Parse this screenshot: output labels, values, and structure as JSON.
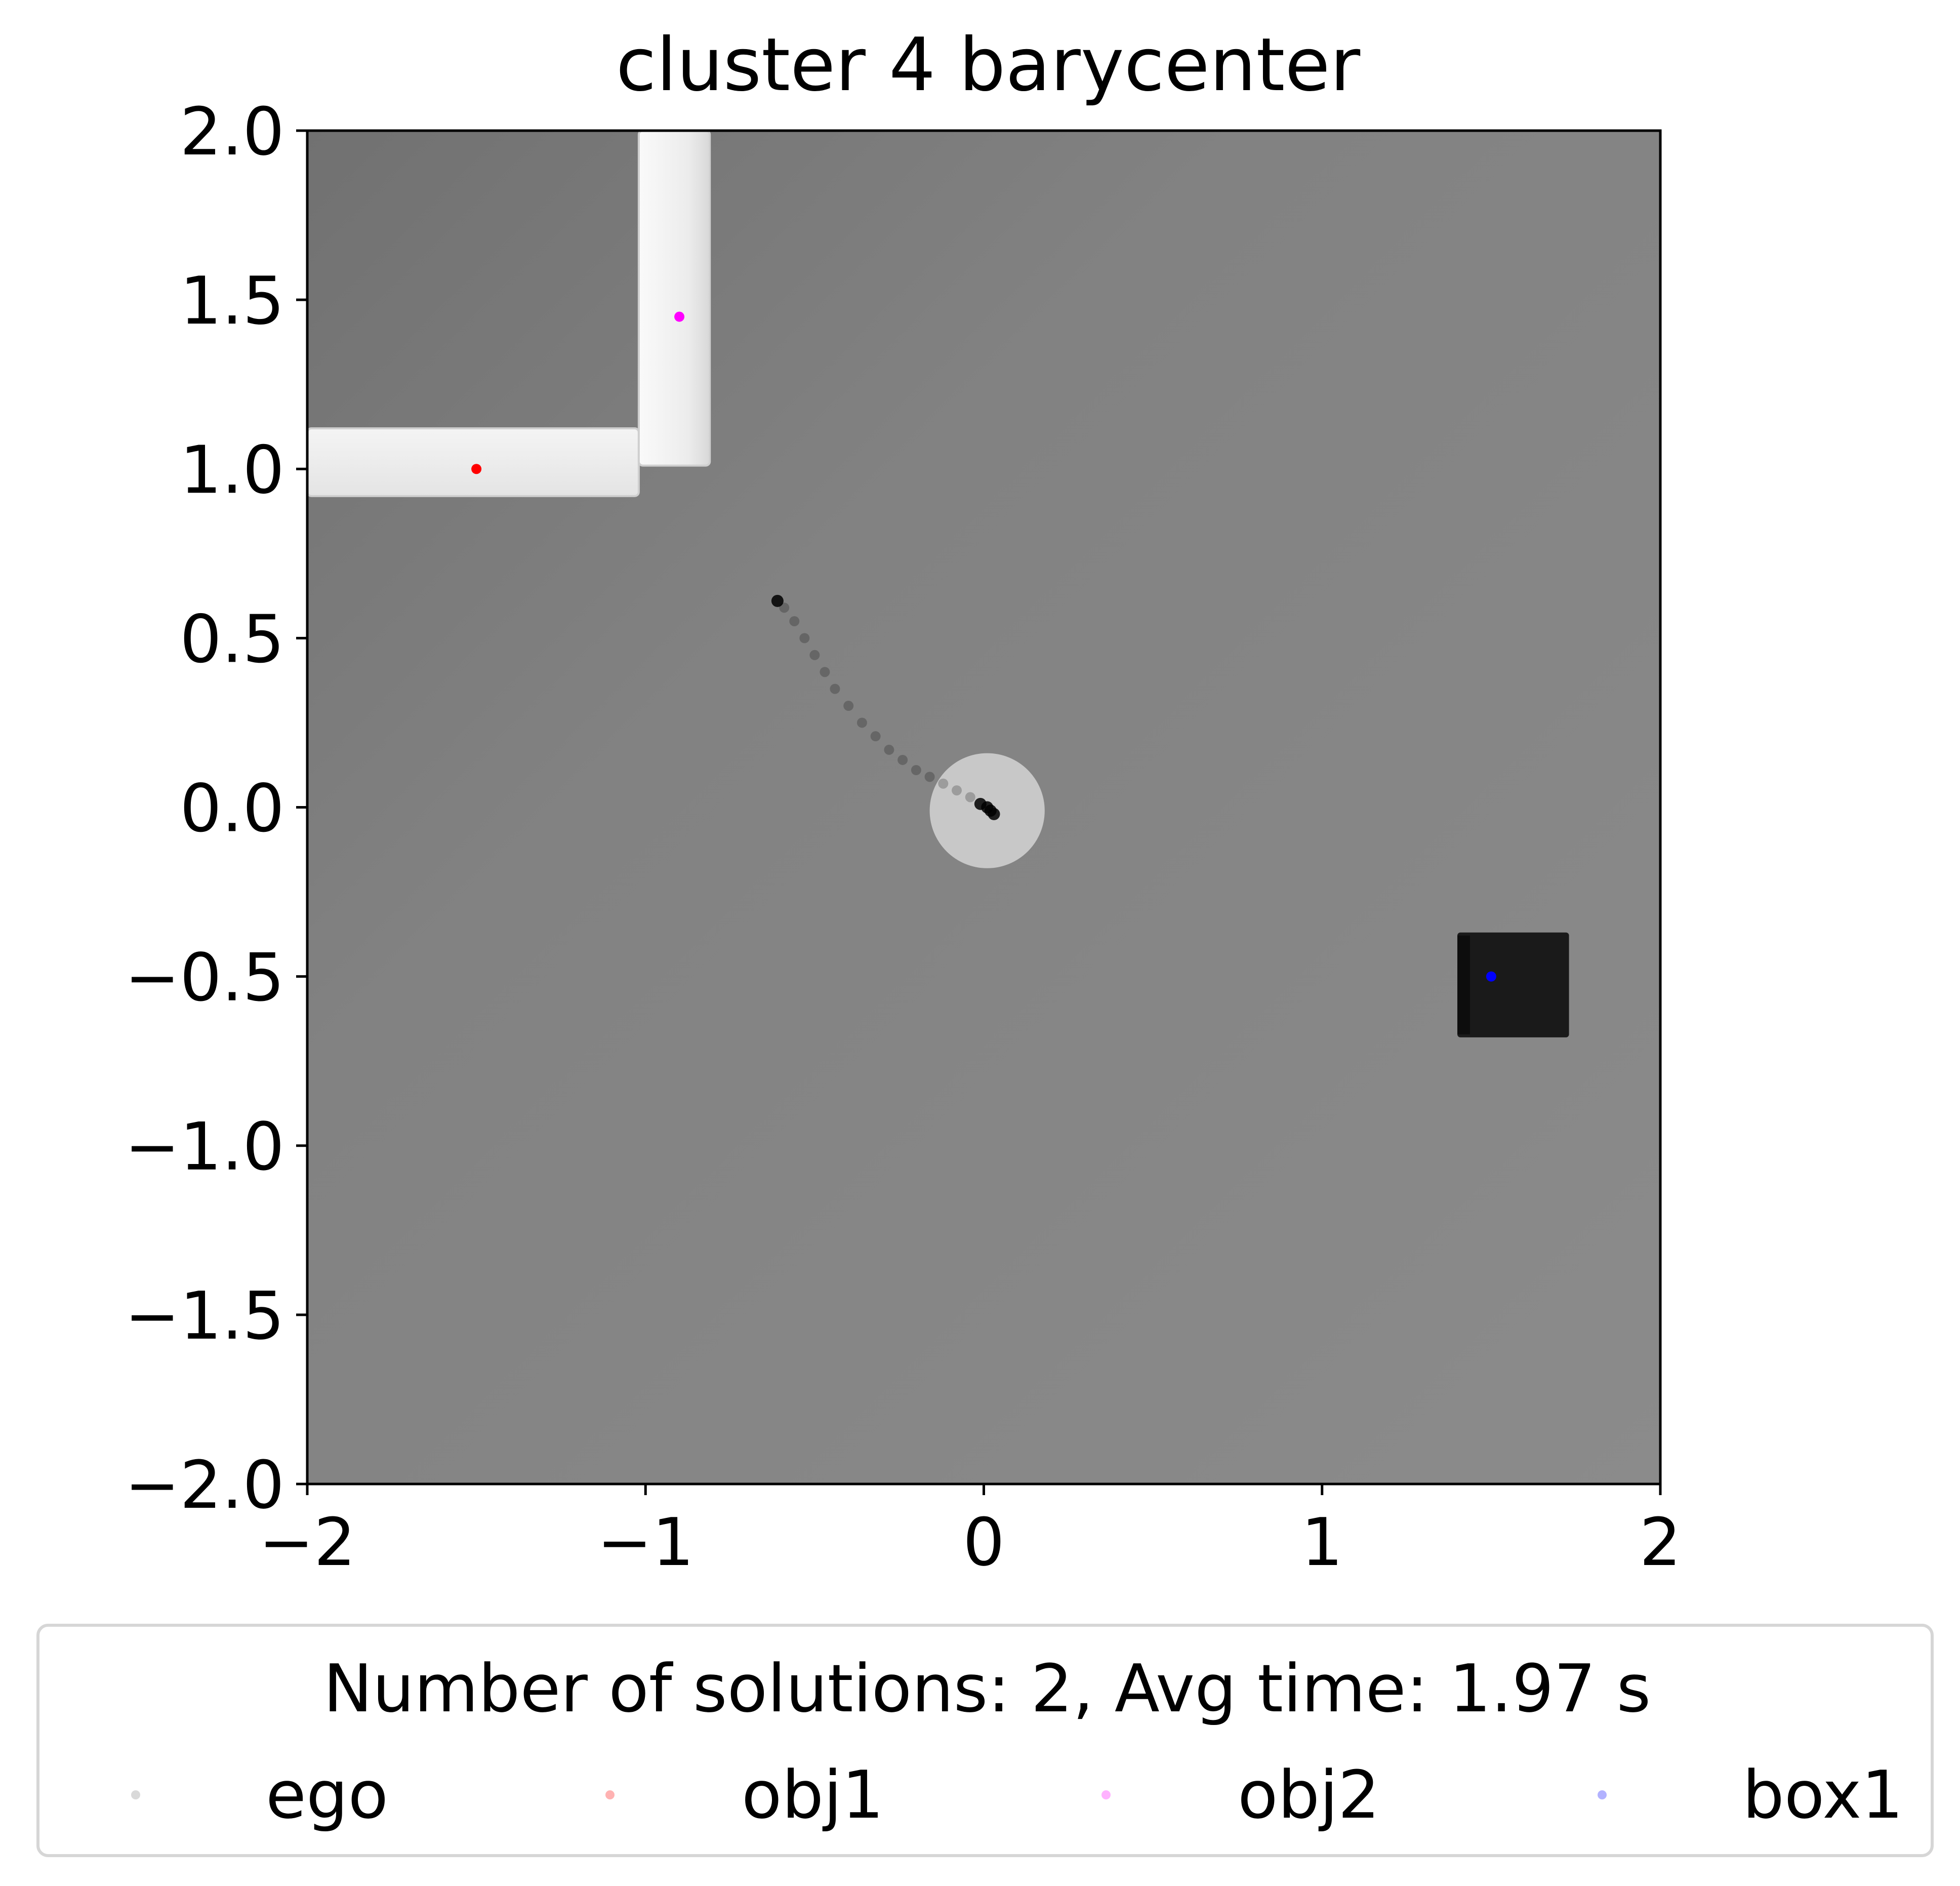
{
  "chart_data": {
    "type": "scatter",
    "title": "cluster 4 barycenter",
    "xlabel": "",
    "ylabel": "",
    "xlim": [
      -2,
      2
    ],
    "ylim": [
      -2,
      2
    ],
    "x_ticks": [
      -2,
      -1,
      0,
      1,
      2
    ],
    "x_tick_labels": [
      "−2",
      "−1",
      "0",
      "1",
      "2"
    ],
    "y_ticks": [
      2.0,
      1.5,
      1.0,
      0.5,
      0.0,
      -0.5,
      -1.0,
      -1.5,
      -2.0
    ],
    "y_tick_labels": [
      "2.0",
      "1.5",
      "1.0",
      "0.5",
      "0.0",
      "−0.5",
      "−1.0",
      "−1.5",
      "−2.0"
    ],
    "grid": false,
    "legend": {
      "placement": "bottom-outside",
      "title": "Number of solutions: 2, Avg time: 1.97 s",
      "entries": [
        {
          "label": "ego",
          "color": "#808080"
        },
        {
          "label": "obj1",
          "color": "#ff0000"
        },
        {
          "label": "obj2",
          "color": "#ff00ff"
        },
        {
          "label": "box1",
          "color": "#0000ff"
        }
      ]
    },
    "series": [
      {
        "name": "ego",
        "color": "#000000",
        "x": [
          -0.61,
          -0.59,
          -0.56,
          -0.53,
          -0.5,
          -0.47,
          -0.44,
          -0.4,
          -0.36,
          -0.32,
          -0.28,
          -0.24,
          -0.2,
          -0.16,
          -0.12,
          -0.08,
          -0.04,
          -0.01,
          0.01,
          0.02,
          0.03
        ],
        "y": [
          0.61,
          0.59,
          0.55,
          0.5,
          0.45,
          0.4,
          0.35,
          0.3,
          0.25,
          0.21,
          0.17,
          0.14,
          0.11,
          0.09,
          0.07,
          0.05,
          0.03,
          0.01,
          0.0,
          -0.01,
          -0.02
        ]
      },
      {
        "name": "obj1",
        "color": "#ff0000",
        "x": [
          -1.5
        ],
        "y": [
          1.0
        ]
      },
      {
        "name": "obj2",
        "color": "#ff00ff",
        "x": [
          -0.9
        ],
        "y": [
          1.45
        ]
      },
      {
        "name": "box1",
        "color": "#0000ff",
        "x": [
          1.5
        ],
        "y": [
          -0.5
        ]
      }
    ],
    "scene": {
      "robot_disk": {
        "x": 0.01,
        "y": -0.01,
        "radius": 0.17,
        "color": "#c8c8c8"
      },
      "walls": [
        {
          "name": "wall-horizontal",
          "x0": -2.0,
          "x1": -1.02,
          "y0": 0.92,
          "y1": 1.12,
          "color": "#efefef"
        },
        {
          "name": "wall-vertical",
          "x0": -1.02,
          "x1": -0.81,
          "y0": 1.01,
          "y1": 2.0,
          "color": "#efefef"
        }
      ],
      "box": {
        "x0": 1.4,
        "x1": 1.73,
        "y0": -0.68,
        "y1": -0.37,
        "color": "#1a1a1a"
      },
      "floor_color": "#858585"
    }
  }
}
